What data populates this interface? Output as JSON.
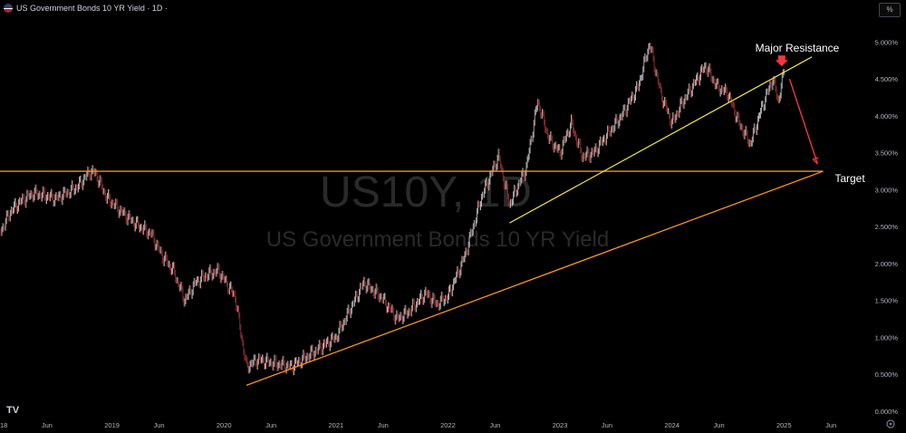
{
  "header": {
    "symbol_title": "US Government Bonds 10 YR Yield · 1D ·",
    "unit_button": "%"
  },
  "watermark": {
    "ticker": "US10Y, 1D",
    "name": "US Government Bonds 10 YR Yield"
  },
  "logo_text": "TV",
  "icon": {
    "settings": "gear-icon",
    "flag": "us-flag-icon"
  },
  "colors": {
    "background": "#000000",
    "horizontal_line": "#f7931e",
    "support_line": "#f7931e",
    "resistance_line": "#ffeb3b",
    "arrow": "#f23645",
    "candle_up": "#e8e8e8",
    "candle_down": "#b03a3a"
  },
  "annotations": {
    "resistance": "Major Resistance",
    "target": "Target"
  },
  "chart_data": {
    "type": "line",
    "title": "US Government Bonds 10 YR Yield",
    "xlabel": "",
    "ylabel": "",
    "ylim": [
      -0.05,
      5.3
    ],
    "y_ticks": [
      "0.000%",
      "0.500%",
      "1.000%",
      "1.500%",
      "2.000%",
      "2.500%",
      "3.000%",
      "3.500%",
      "4.000%",
      "4.500%",
      "5.000%"
    ],
    "x_ticks": [
      {
        "label": "2018",
        "t": 2018.0
      },
      {
        "label": "Jun",
        "t": 2018.42
      },
      {
        "label": "2019",
        "t": 2019.0
      },
      {
        "label": "Jun",
        "t": 2019.42
      },
      {
        "label": "2020",
        "t": 2020.0
      },
      {
        "label": "Jun",
        "t": 2020.42
      },
      {
        "label": "2021",
        "t": 2021.0
      },
      {
        "label": "Jun",
        "t": 2021.42
      },
      {
        "label": "2022",
        "t": 2022.0
      },
      {
        "label": "Jun",
        "t": 2022.42
      },
      {
        "label": "2023",
        "t": 2023.0
      },
      {
        "label": "Jun",
        "t": 2023.42
      },
      {
        "label": "2024",
        "t": 2024.0
      },
      {
        "label": "Jun",
        "t": 2024.42
      },
      {
        "label": "2025",
        "t": 2025.0
      },
      {
        "label": "Jun",
        "t": 2025.42
      }
    ],
    "series": [
      {
        "values": [
          [
            2018.0,
            2.42
          ],
          [
            2018.1,
            2.72
          ],
          [
            2018.2,
            2.86
          ],
          [
            2018.3,
            2.95
          ],
          [
            2018.4,
            2.92
          ],
          [
            2018.5,
            2.88
          ],
          [
            2018.6,
            2.96
          ],
          [
            2018.7,
            3.05
          ],
          [
            2018.8,
            3.24
          ],
          [
            2018.85,
            3.23
          ],
          [
            2018.95,
            2.9
          ],
          [
            2019.1,
            2.68
          ],
          [
            2019.2,
            2.55
          ],
          [
            2019.35,
            2.4
          ],
          [
            2019.45,
            2.1
          ],
          [
            2019.55,
            1.9
          ],
          [
            2019.65,
            1.5
          ],
          [
            2019.75,
            1.75
          ],
          [
            2019.85,
            1.85
          ],
          [
            2019.95,
            1.9
          ],
          [
            2020.1,
            1.55
          ],
          [
            2020.2,
            0.6
          ],
          [
            2020.3,
            0.7
          ],
          [
            2020.45,
            0.65
          ],
          [
            2020.6,
            0.6
          ],
          [
            2020.75,
            0.75
          ],
          [
            2020.9,
            0.9
          ],
          [
            2021.0,
            1.0
          ],
          [
            2021.2,
            1.6
          ],
          [
            2021.25,
            1.74
          ],
          [
            2021.4,
            1.55
          ],
          [
            2021.55,
            1.25
          ],
          [
            2021.65,
            1.35
          ],
          [
            2021.8,
            1.6
          ],
          [
            2021.9,
            1.45
          ],
          [
            2022.0,
            1.55
          ],
          [
            2022.15,
            2.1
          ],
          [
            2022.3,
            2.9
          ],
          [
            2022.45,
            3.45
          ],
          [
            2022.55,
            2.8
          ],
          [
            2022.7,
            3.3
          ],
          [
            2022.8,
            4.2
          ],
          [
            2022.9,
            3.7
          ],
          [
            2023.0,
            3.5
          ],
          [
            2023.1,
            3.9
          ],
          [
            2023.2,
            3.45
          ],
          [
            2023.3,
            3.5
          ],
          [
            2023.45,
            3.8
          ],
          [
            2023.55,
            4.0
          ],
          [
            2023.7,
            4.4
          ],
          [
            2023.8,
            4.98
          ],
          [
            2023.9,
            4.3
          ],
          [
            2024.0,
            3.9
          ],
          [
            2024.1,
            4.2
          ],
          [
            2024.3,
            4.68
          ],
          [
            2024.4,
            4.4
          ],
          [
            2024.5,
            4.3
          ],
          [
            2024.6,
            3.9
          ],
          [
            2024.7,
            3.62
          ],
          [
            2024.8,
            4.1
          ],
          [
            2024.9,
            4.5
          ],
          [
            2024.95,
            4.2
          ],
          [
            2025.0,
            4.6
          ]
        ]
      }
    ],
    "lines": [
      {
        "kind": "horizontal",
        "y": 3.25,
        "from": 2018.85,
        "to": 2025.35
      },
      {
        "kind": "support",
        "from": [
          2020.2,
          0.35
        ],
        "to": [
          2025.35,
          3.25
        ]
      },
      {
        "kind": "resistance",
        "from": [
          2022.55,
          2.55
        ],
        "to": [
          2025.25,
          4.8
        ]
      },
      {
        "kind": "arrow",
        "from": [
          2025.05,
          4.5
        ],
        "to": [
          2025.3,
          3.35
        ]
      },
      {
        "kind": "marker",
        "at": [
          2024.98,
          4.72
        ]
      }
    ]
  }
}
